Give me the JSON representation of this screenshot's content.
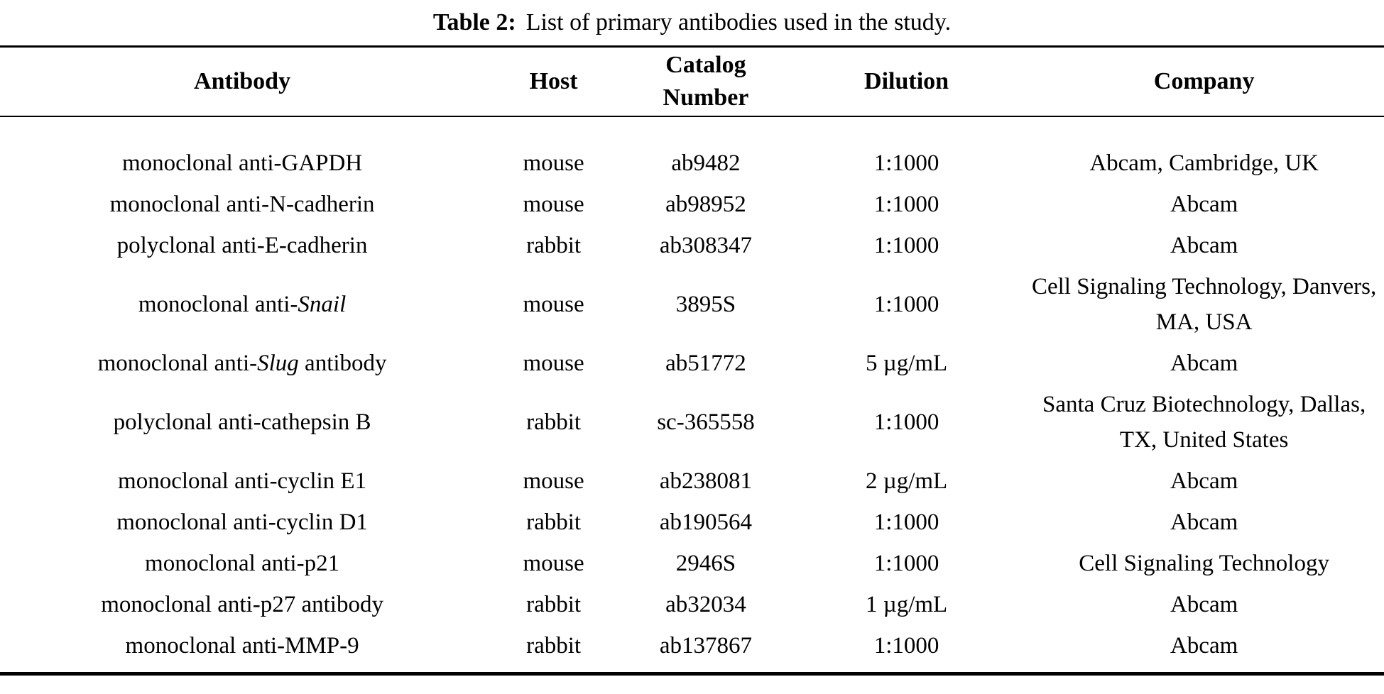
{
  "caption": {
    "label": "Table 2:",
    "text": "List of primary antibodies used in the study."
  },
  "colors": {
    "text": "#000000",
    "background": "#ffffff",
    "rule": "#000000"
  },
  "table": {
    "columns": [
      {
        "key": "antibody",
        "label": "Antibody"
      },
      {
        "key": "host",
        "label": "Host"
      },
      {
        "key": "catalog",
        "label": "Catalog Number"
      },
      {
        "key": "dilution",
        "label": "Dilution"
      },
      {
        "key": "company",
        "label": "Company"
      }
    ],
    "rows": [
      {
        "antibody_prefix": "monoclonal anti-GAPDH",
        "antibody_italic": "",
        "antibody_suffix": "",
        "host": "mouse",
        "catalog": "ab9482",
        "dilution": "1:1000",
        "company": "Abcam, Cambridge, UK"
      },
      {
        "antibody_prefix": "monoclonal anti-N-cadherin",
        "antibody_italic": "",
        "antibody_suffix": "",
        "host": "mouse",
        "catalog": "ab98952",
        "dilution": "1:1000",
        "company": "Abcam"
      },
      {
        "antibody_prefix": "polyclonal anti-E-cadherin",
        "antibody_italic": "",
        "antibody_suffix": "",
        "host": "rabbit",
        "catalog": "ab308347",
        "dilution": "1:1000",
        "company": "Abcam"
      },
      {
        "antibody_prefix": "monoclonal anti-",
        "antibody_italic": "Snail",
        "antibody_suffix": "",
        "host": "mouse",
        "catalog": "3895S",
        "dilution": "1:1000",
        "company": "Cell Signaling Technology, Danvers, MA, USA"
      },
      {
        "antibody_prefix": "monoclonal anti-",
        "antibody_italic": "Slug",
        "antibody_suffix": " antibody",
        "host": "mouse",
        "catalog": "ab51772",
        "dilution": "5 µg/mL",
        "company": "Abcam"
      },
      {
        "antibody_prefix": "polyclonal anti-cathepsin B",
        "antibody_italic": "",
        "antibody_suffix": "",
        "host": "rabbit",
        "catalog": "sc-365558",
        "dilution": "1:1000",
        "company": "Santa Cruz Biotechnology, Dallas, TX, United States"
      },
      {
        "antibody_prefix": "monoclonal anti-cyclin E1",
        "antibody_italic": "",
        "antibody_suffix": "",
        "host": "mouse",
        "catalog": "ab238081",
        "dilution": "2 µg/mL",
        "company": "Abcam"
      },
      {
        "antibody_prefix": "monoclonal anti-cyclin D1",
        "antibody_italic": "",
        "antibody_suffix": "",
        "host": "rabbit",
        "catalog": "ab190564",
        "dilution": "1:1000",
        "company": "Abcam"
      },
      {
        "antibody_prefix": "monoclonal anti-p21",
        "antibody_italic": "",
        "antibody_suffix": "",
        "host": "mouse",
        "catalog": "2946S",
        "dilution": "1:1000",
        "company": "Cell Signaling Technology"
      },
      {
        "antibody_prefix": "monoclonal anti-p27 antibody",
        "antibody_italic": "",
        "antibody_suffix": "",
        "host": "rabbit",
        "catalog": "ab32034",
        "dilution": "1 µg/mL",
        "company": "Abcam"
      },
      {
        "antibody_prefix": "monoclonal anti-MMP-9",
        "antibody_italic": "",
        "antibody_suffix": "",
        "host": "rabbit",
        "catalog": "ab137867",
        "dilution": "1:1000",
        "company": "Abcam"
      }
    ]
  }
}
